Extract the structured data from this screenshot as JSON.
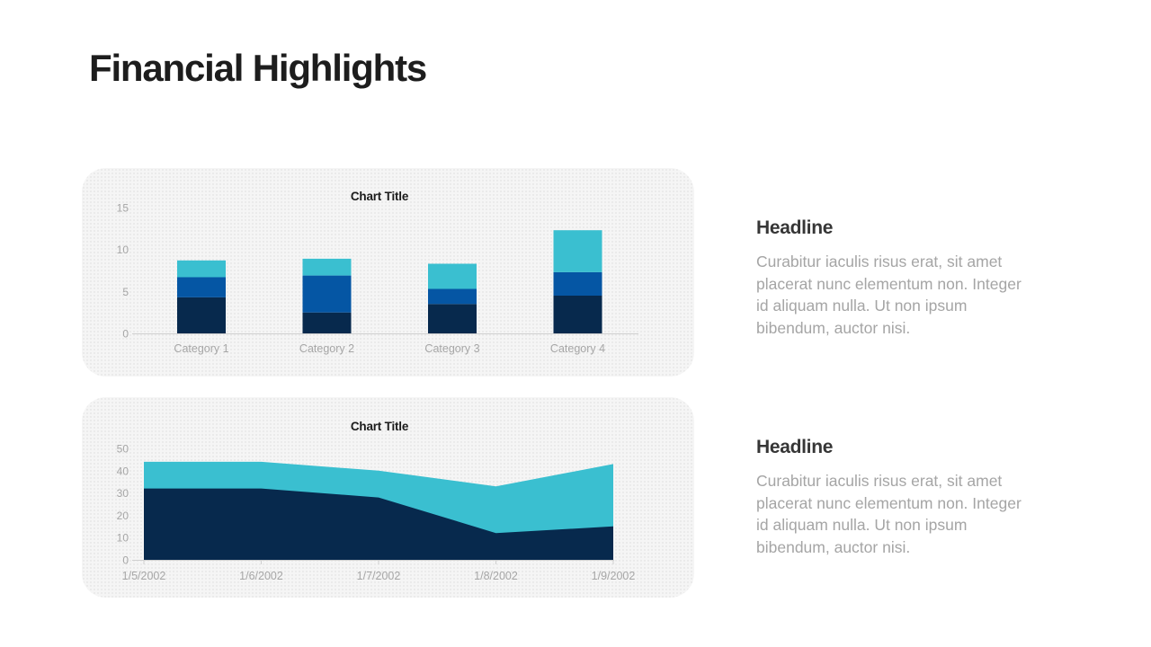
{
  "page": {
    "title": "Financial Highlights"
  },
  "chart_data": [
    {
      "type": "bar",
      "stacked": true,
      "title": "Chart Title",
      "categories": [
        "Category 1",
        "Category 2",
        "Category 3",
        "Category 4"
      ],
      "series": [
        {
          "color": "#07294d",
          "values": [
            4.3,
            2.5,
            3.5,
            4.5
          ]
        },
        {
          "color": "#0556a4",
          "values": [
            2.4,
            4.4,
            1.8,
            2.8
          ]
        },
        {
          "color": "#3abfd0",
          "values": [
            2.0,
            2.0,
            3.0,
            5.0
          ]
        }
      ],
      "yticks": [
        0,
        5,
        10,
        15
      ],
      "ylim": [
        0,
        15
      ],
      "grid": false,
      "legend": "none"
    },
    {
      "type": "area",
      "stacked": true,
      "title": "Chart Title",
      "x": [
        "1/5/2002",
        "1/6/2002",
        "1/7/2002",
        "1/8/2002",
        "1/9/2002"
      ],
      "series": [
        {
          "color": "#07294d",
          "values": [
            32,
            32,
            28,
            12,
            15
          ]
        },
        {
          "color": "#3abfd0",
          "values": [
            12,
            12,
            12,
            21,
            28
          ]
        }
      ],
      "yticks": [
        0,
        10,
        20,
        30,
        40,
        50
      ],
      "ylim": [
        0,
        50
      ],
      "grid": false,
      "legend": "none"
    }
  ],
  "text_blocks": [
    {
      "headline": "Headline",
      "body": "Curabitur iaculis risus erat, sit amet placerat nunc elementum non. Integer id aliquam nulla. Ut non ipsum bibendum, auctor nisi."
    },
    {
      "headline": "Headline",
      "body": "Curabitur iaculis risus erat, sit amet placerat nunc elementum non. Integer id aliquam nulla. Ut non ipsum bibendum, auctor nisi."
    }
  ]
}
